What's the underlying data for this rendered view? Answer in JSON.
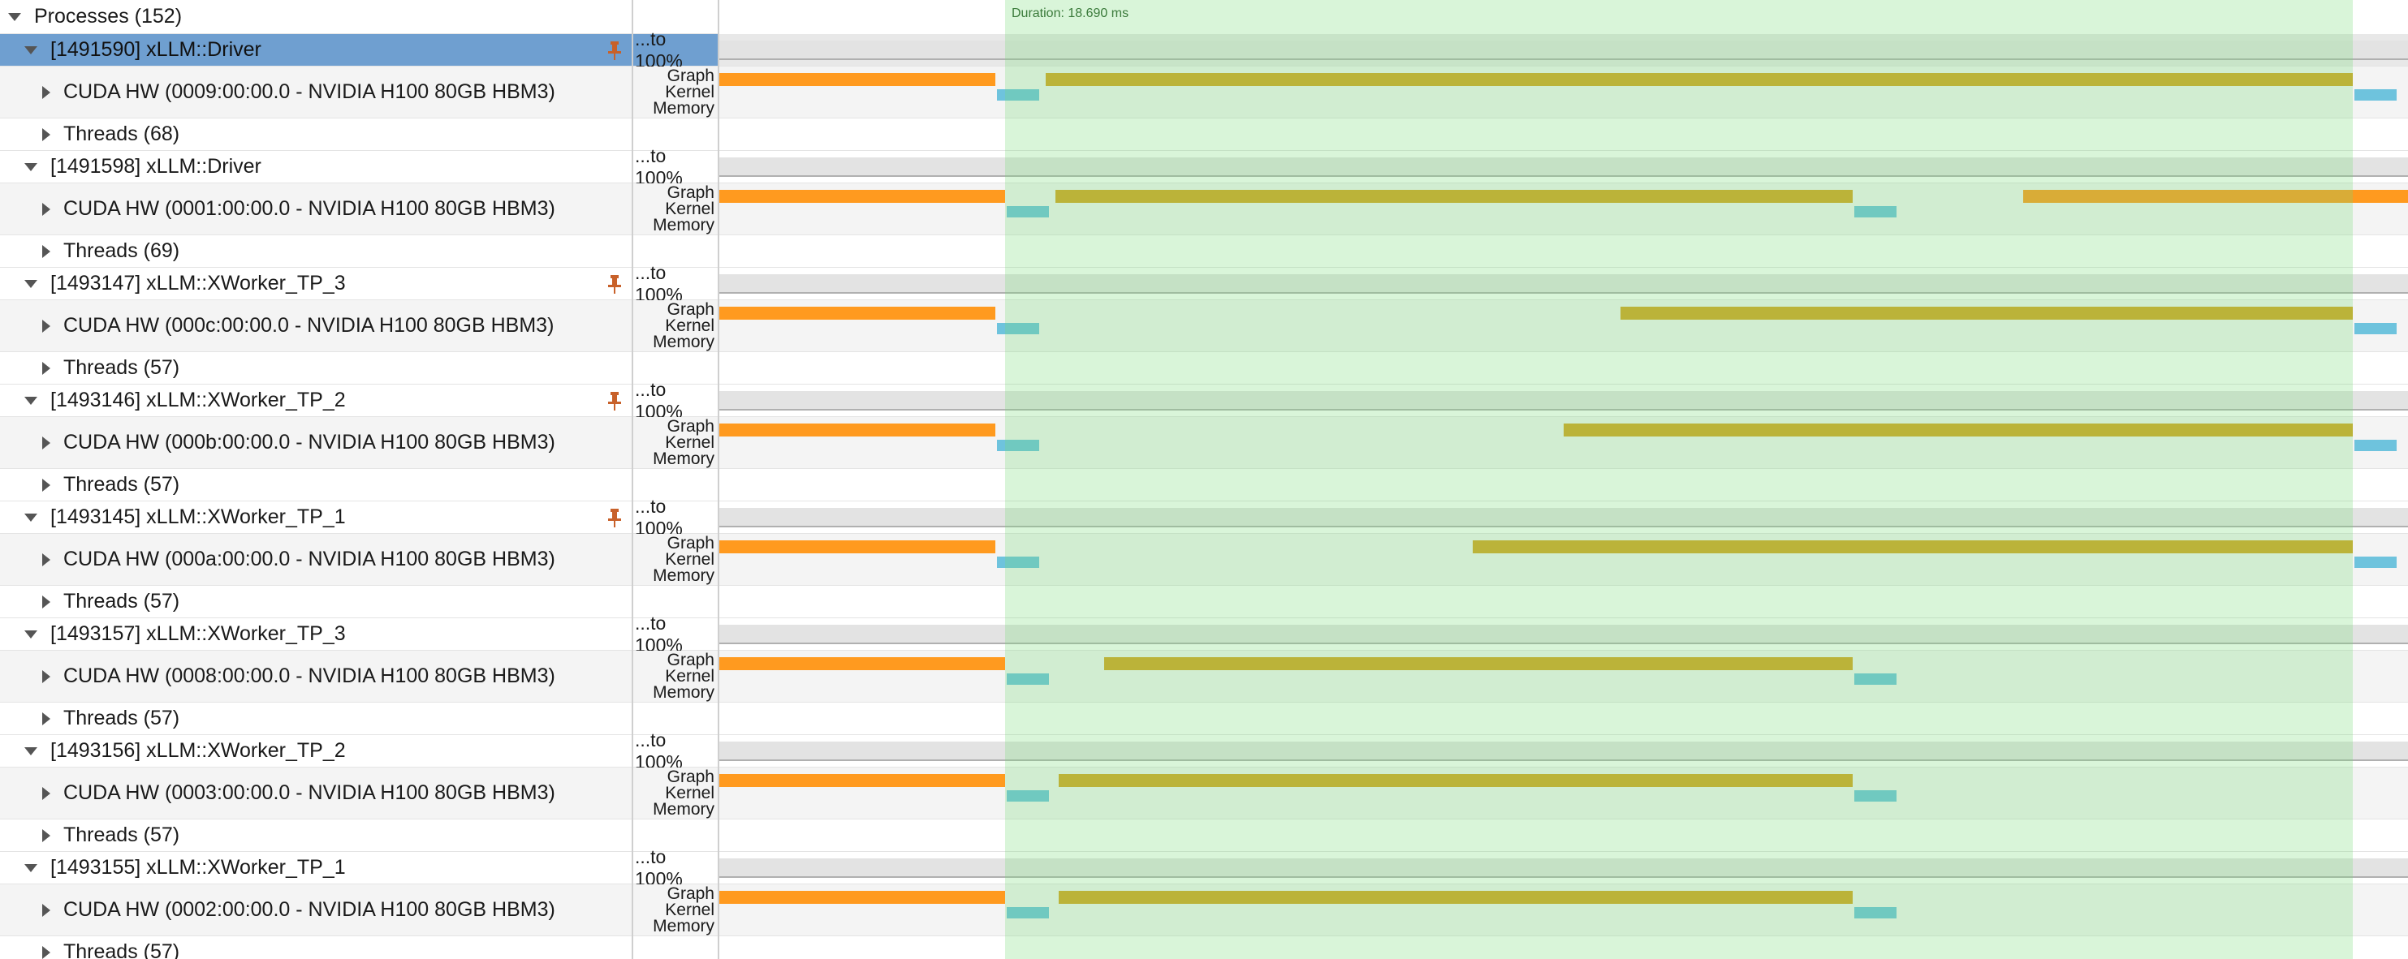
{
  "header": {
    "label": "Processes (152)"
  },
  "scale_label": "...to 100%",
  "lanes": {
    "graph": "Graph",
    "kernel": "Kernel",
    "memory": "Memory"
  },
  "duration_label": "Duration: 18.690 ms",
  "colors": {
    "graph_pre": "#ff9a1f",
    "graph_post": "#d6a422",
    "kernel": "#6ec3dd",
    "selection": "#c8efc8",
    "selected_row": "#6f9fd0",
    "pin": "#c8612a"
  },
  "processes": [
    {
      "title": "[1491590] xLLM::Driver",
      "cuda": "CUDA HW (0009:00:00.0 - NVIDIA H100 80GB HBM3)",
      "threads": "Threads (68)",
      "pinned": true,
      "selected": true
    },
    {
      "title": "[1491598] xLLM::Driver",
      "cuda": "CUDA HW (0001:00:00.0 - NVIDIA H100 80GB HBM3)",
      "threads": "Threads (69)",
      "pinned": false,
      "selected": false
    },
    {
      "title": "[1493147] xLLM::XWorker_TP_3",
      "cuda": "CUDA HW (000c:00:00.0 - NVIDIA H100 80GB HBM3)",
      "threads": "Threads (57)",
      "pinned": true,
      "selected": false
    },
    {
      "title": "[1493146] xLLM::XWorker_TP_2",
      "cuda": "CUDA HW (000b:00:00.0 - NVIDIA H100 80GB HBM3)",
      "threads": "Threads (57)",
      "pinned": true,
      "selected": false
    },
    {
      "title": "[1493145] xLLM::XWorker_TP_1",
      "cuda": "CUDA HW (000a:00:00.0 - NVIDIA H100 80GB HBM3)",
      "threads": "Threads (57)",
      "pinned": true,
      "selected": false
    },
    {
      "title": "[1493157] xLLM::XWorker_TP_3",
      "cuda": "CUDA HW (0008:00:00.0 - NVIDIA H100 80GB HBM3)",
      "threads": "Threads (57)",
      "pinned": false,
      "selected": false
    },
    {
      "title": "[1493156] xLLM::XWorker_TP_2",
      "cuda": "CUDA HW (0003:00:00.0 - NVIDIA H100 80GB HBM3)",
      "threads": "Threads (57)",
      "pinned": false,
      "selected": false
    },
    {
      "title": "[1493155] xLLM::XWorker_TP_1",
      "cuda": "CUDA HW (0002:00:00.0 - NVIDIA H100 80GB HBM3)",
      "threads": "Threads (57)",
      "pinned": false,
      "selected": false
    }
  ]
}
